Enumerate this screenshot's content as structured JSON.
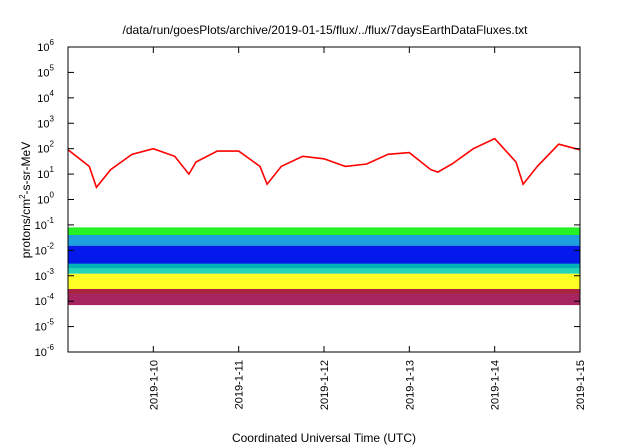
{
  "chart_data": {
    "type": "line",
    "title": "/data/run/goesPlots/archive/2019-01-15/flux/../flux/7daysEarthDataFluxes.txt",
    "xlabel": "Coordinated Universal Time (UTC)",
    "ylabel_main": "protons/cm",
    "ylabel_sup": "2",
    "ylabel_rest": "-s-sr-MeV",
    "x_ticks": [
      "2019-1-10",
      "2019-1-11",
      "2019-1-12",
      "2019-1-13",
      "2019-1-14",
      "2019-1-15"
    ],
    "x_range": [
      "2019-1-9",
      "2019-1-15"
    ],
    "y_scale": "log",
    "y_range": [
      1e-06,
      1000000.0
    ],
    "y_ticks": [
      {
        "base": "10",
        "exp": "-6"
      },
      {
        "base": "10",
        "exp": "-5"
      },
      {
        "base": "10",
        "exp": "-4"
      },
      {
        "base": "10",
        "exp": "-3"
      },
      {
        "base": "10",
        "exp": "-2"
      },
      {
        "base": "10",
        "exp": "-1"
      },
      {
        "base": "10",
        "exp": "0"
      },
      {
        "base": "10",
        "exp": "1"
      },
      {
        "base": "10",
        "exp": "2"
      },
      {
        "base": "10",
        "exp": "3"
      },
      {
        "base": "10",
        "exp": "4"
      },
      {
        "base": "10",
        "exp": "5"
      },
      {
        "base": "10",
        "exp": "6"
      }
    ],
    "series": [
      {
        "color": "#ff0000",
        "kind": "line",
        "x": [
          "2019-1-9 00:00",
          "2019-1-9 06:00",
          "2019-1-9 08:00",
          "2019-1-9 12:00",
          "2019-1-9 18:00",
          "2019-1-10 00:00",
          "2019-1-10 06:00",
          "2019-1-10 10:00",
          "2019-1-10 12:00",
          "2019-1-10 18:00",
          "2019-1-11 00:00",
          "2019-1-11 06:00",
          "2019-1-11 08:00",
          "2019-1-11 12:00",
          "2019-1-11 18:00",
          "2019-1-12 00:00",
          "2019-1-12 06:00",
          "2019-1-12 12:00",
          "2019-1-12 18:00",
          "2019-1-13 00:00",
          "2019-1-13 06:00",
          "2019-1-13 08:00",
          "2019-1-13 12:00",
          "2019-1-13 18:00",
          "2019-1-14 00:00",
          "2019-1-14 06:00",
          "2019-1-14 08:00",
          "2019-1-14 12:00",
          "2019-1-14 18:00",
          "2019-1-15 00:00"
        ],
        "y": [
          90,
          20,
          3,
          15,
          60,
          100,
          50,
          10,
          30,
          80,
          80,
          20,
          4,
          20,
          50,
          40,
          20,
          25,
          60,
          70,
          15,
          12,
          25,
          100,
          250,
          30,
          4,
          20,
          150,
          90
        ]
      },
      {
        "color": "#00ee00",
        "kind": "band",
        "x": [
          "2019-1-9",
          "2019-1-15"
        ],
        "low": [
          0.003,
          0.003
        ],
        "high": [
          0.08,
          0.08
        ]
      },
      {
        "color": "#1e90ff",
        "kind": "band",
        "x": [
          "2019-1-9",
          "2019-1-15"
        ],
        "low": [
          0.002,
          0.002
        ],
        "high": [
          0.04,
          0.04
        ]
      },
      {
        "color": "#0000ee",
        "kind": "band",
        "x": [
          "2019-1-9",
          "2019-1-15"
        ],
        "low": [
          0.002,
          0.002
        ],
        "high": [
          0.015,
          0.015
        ]
      },
      {
        "color": "#00ccaa",
        "kind": "band",
        "x": [
          "2019-1-9",
          "2019-1-15"
        ],
        "low": [
          0.0012,
          0.0012
        ],
        "high": [
          0.003,
          0.003
        ]
      },
      {
        "color": "#ffff00",
        "kind": "band",
        "x": [
          "2019-1-9",
          "2019-1-15"
        ],
        "low": [
          0.0002,
          0.0002
        ],
        "high": [
          0.0012,
          0.0012
        ]
      },
      {
        "color": "#990044",
        "kind": "band",
        "x": [
          "2019-1-9",
          "2019-1-15"
        ],
        "low": [
          7e-05,
          7e-05
        ],
        "high": [
          0.0003,
          0.0003
        ]
      }
    ],
    "grid": false,
    "legend": "none"
  }
}
